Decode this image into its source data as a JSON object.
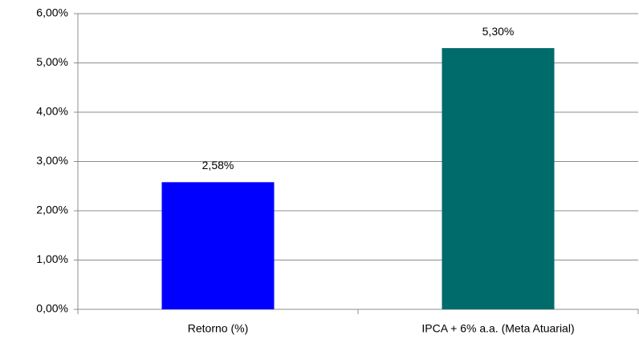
{
  "chart_data": {
    "type": "bar",
    "categories": [
      "Retorno (%)",
      "IPCA + 6% a.a. (Meta Atuarial)"
    ],
    "values": [
      2.58,
      5.3
    ],
    "value_labels": [
      "2,58%",
      "5,30%"
    ],
    "colors": [
      "#0000ff",
      "#006b6b"
    ],
    "ylim": [
      0,
      6
    ],
    "yticks": [
      {
        "value": 0,
        "label": "0,00%"
      },
      {
        "value": 1,
        "label": "1,00%"
      },
      {
        "value": 2,
        "label": "2,00%"
      },
      {
        "value": 3,
        "label": "3,00%"
      },
      {
        "value": 4,
        "label": "4,00%"
      },
      {
        "value": 5,
        "label": "5,00%"
      },
      {
        "value": 6,
        "label": "6,00%"
      }
    ],
    "grid": true
  }
}
